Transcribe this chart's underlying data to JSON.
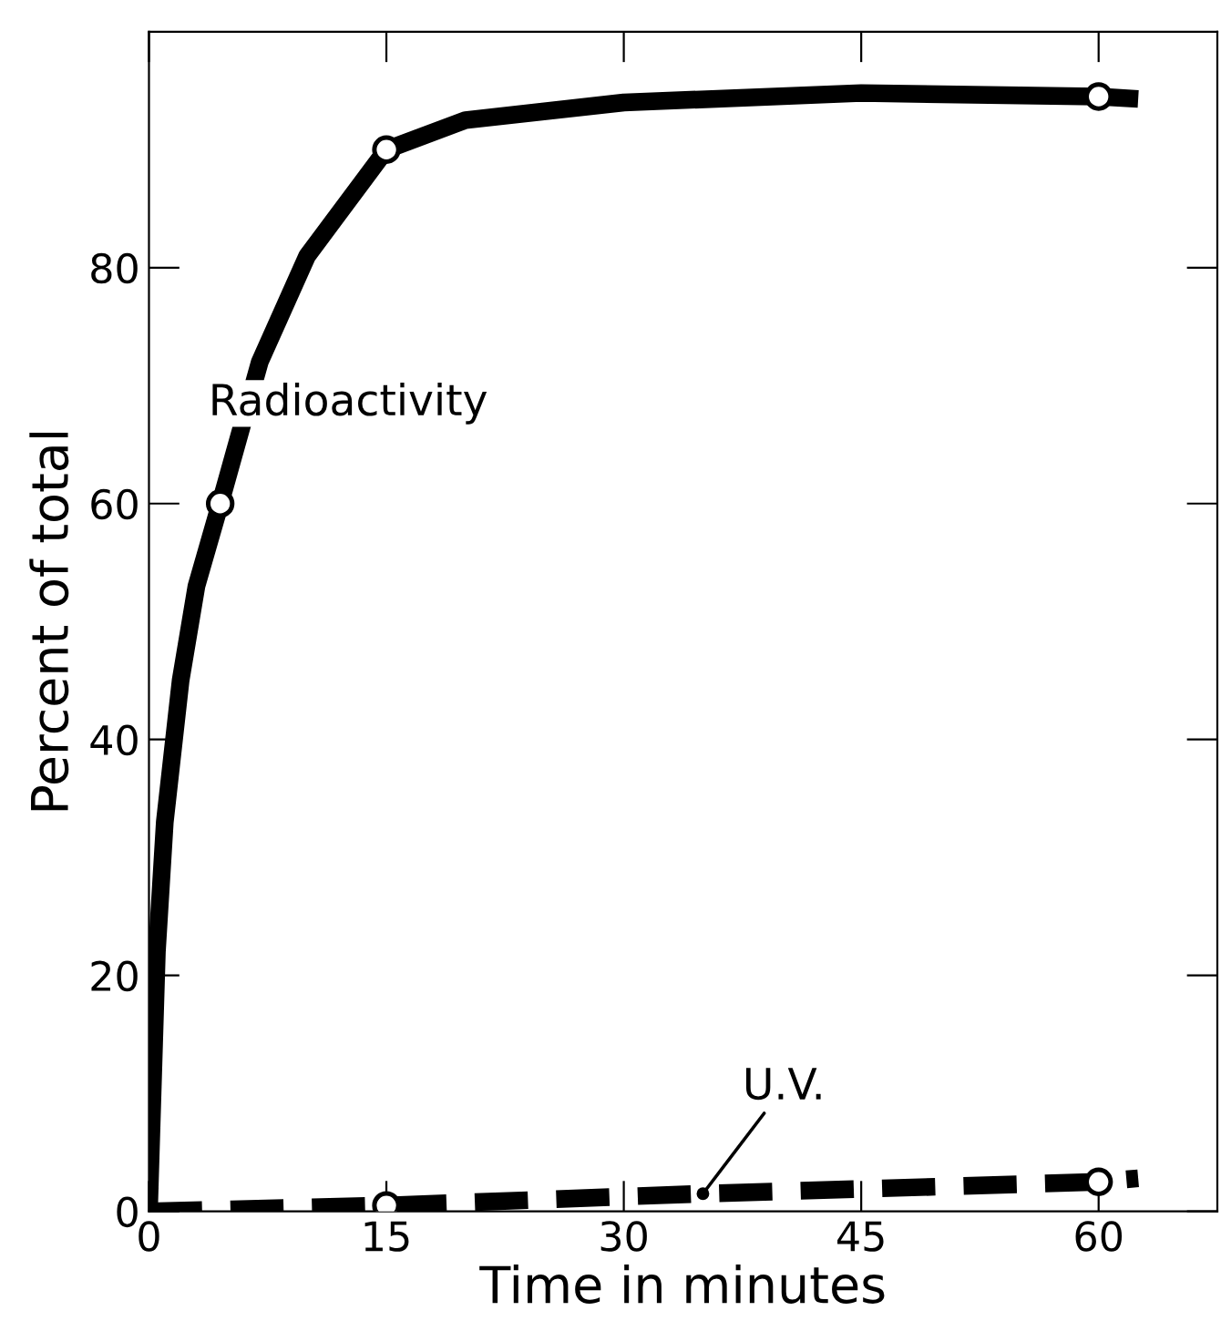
{
  "chart_data": {
    "type": "line",
    "xlabel": "Time in minutes",
    "ylabel": "Percent of total",
    "xlim": [
      0,
      67.5
    ],
    "ylim": [
      0,
      100
    ],
    "xticks": [
      0,
      15,
      30,
      45,
      60
    ],
    "yticks": [
      0,
      20,
      40,
      60,
      80
    ],
    "grid": false,
    "legend": false,
    "annotations": [
      {
        "text": "Radioactivity",
        "x": 6,
        "y": 67.2
      },
      {
        "text": "U.V.",
        "x": 35,
        "y": 1.5
      }
    ],
    "series": [
      {
        "color": "#000000",
        "line_style": "solid",
        "marker": "none",
        "x": [
          0,
          0.5,
          1,
          2,
          3,
          4.5,
          7,
          10,
          15,
          20,
          30,
          45,
          60,
          62.5
        ],
        "values": [
          0,
          22,
          33,
          45,
          53,
          60,
          72,
          81,
          90,
          92.5,
          94,
          94.8,
          94.5,
          94.3
        ]
      },
      {
        "type": "scatter",
        "color": "#000000",
        "marker": "circle",
        "x": [
          4.5,
          15,
          60
        ],
        "values": [
          60,
          90,
          94.5
        ]
      },
      {
        "color": "#000000",
        "line_style": "dashed",
        "marker": "none",
        "x": [
          0,
          15,
          35,
          60,
          62.5
        ],
        "values": [
          0,
          0.5,
          1.5,
          2.5,
          2.8
        ]
      },
      {
        "type": "scatter",
        "color": "#000000",
        "marker": "circle",
        "x": [
          15,
          60
        ],
        "values": [
          0.5,
          2.5
        ]
      }
    ]
  }
}
